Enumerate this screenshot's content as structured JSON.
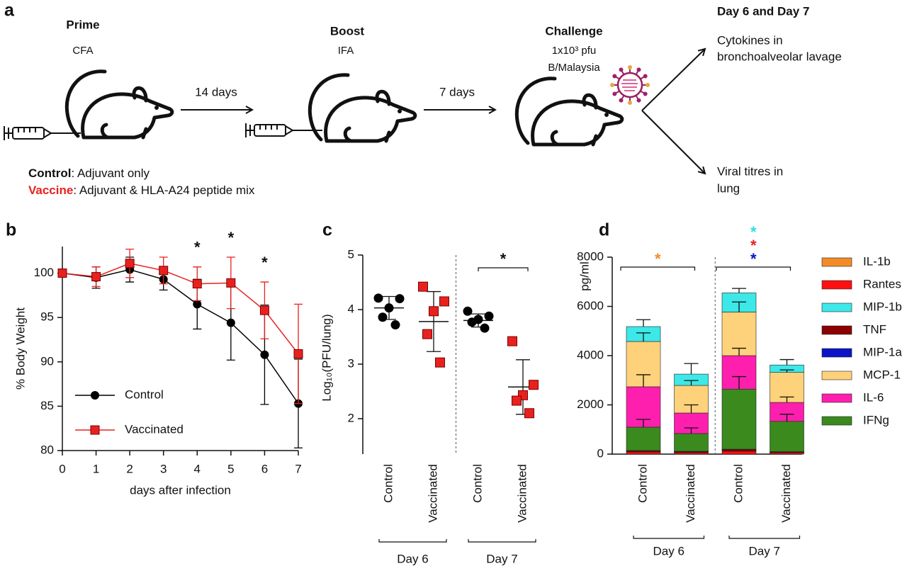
{
  "schematic": {
    "panel": "a",
    "steps": [
      {
        "title": "Prime",
        "adjuvant": "CFA"
      },
      {
        "title": "Boost",
        "adjuvant": "IFA"
      },
      {
        "title": "Challenge",
        "dose": "1x10³ pfu",
        "strain": "B/Malaysia"
      }
    ],
    "intervals": [
      "14 days",
      "7 days"
    ],
    "readout": {
      "title": "Day 6 and Day 7",
      "outcomes": [
        [
          "Cytokines in",
          "bronchoalveolar lavage"
        ],
        [
          "Viral titres in",
          "lung"
        ]
      ]
    },
    "groups": [
      {
        "name": "Control",
        "description": ": Adjuvant only",
        "color": "#111111"
      },
      {
        "name": "Vaccine",
        "description": ": Adjuvant & HLA-A24 peptide mix",
        "color": "#e8211f"
      }
    ]
  },
  "chart_data": [
    {
      "panel": "b",
      "type": "line",
      "xlabel": "days after infection",
      "ylabel": "% Body Weight",
      "x": [
        0,
        1,
        2,
        3,
        4,
        5,
        6,
        7
      ],
      "xlim": [
        0,
        7
      ],
      "xticks": [
        0,
        1,
        2,
        3,
        4,
        5,
        6,
        7
      ],
      "ylim": [
        80,
        103
      ],
      "yticks": [
        80,
        85,
        90,
        95,
        100
      ],
      "legend": "lower left",
      "series": [
        {
          "name": "Control",
          "color": "#000000",
          "marker": "circle",
          "values": [
            100,
            99.5,
            100.4,
            99.3,
            96.5,
            94.4,
            90.8,
            85.3
          ],
          "errors": [
            0,
            1.2,
            1.4,
            1.2,
            2.8,
            4.2,
            5.6,
            5
          ]
        },
        {
          "name": "Vaccinated",
          "color": "#e8211f",
          "marker": "square",
          "values": [
            100,
            99.6,
            101.1,
            100.3,
            98.8,
            98.9,
            95.8,
            90.9
          ],
          "errors": [
            0,
            1.1,
            1.6,
            1.5,
            1.9,
            2.9,
            3.2,
            5.6
          ]
        }
      ],
      "annotations": [
        {
          "text": "*",
          "x": 4
        },
        {
          "text": "*",
          "x": 5
        },
        {
          "text": "*",
          "x": 6
        }
      ]
    },
    {
      "panel": "c",
      "type": "dot",
      "ylabel": "Log₁₀(PFU/lung)",
      "categories": [
        "Control",
        "Vaccinated",
        "Control",
        "Vaccinated"
      ],
      "groups": [
        "Day 6",
        "Day 7"
      ],
      "colors": [
        "#000000",
        "#e8211f",
        "#000000",
        "#e8211f"
      ],
      "markers": [
        "circle",
        "square",
        "circle",
        "square"
      ],
      "values": [
        [
          4.21,
          4.2,
          4.03,
          3.86,
          3.72
        ],
        [
          4.42,
          4.15,
          3.97,
          3.55,
          3.03
        ],
        [
          3.97,
          3.88,
          3.82,
          3.77,
          3.66
        ],
        [
          3.42,
          2.62,
          2.43,
          2.33,
          2.1
        ]
      ],
      "means": [
        4.03,
        3.78,
        3.8,
        2.58
      ],
      "sd": [
        0.21,
        0.55,
        0.12,
        0.5
      ],
      "ylim": [
        1.35,
        5
      ],
      "yticks": [
        2,
        3,
        4,
        5
      ],
      "annotations": [
        {
          "text": "*",
          "group": "Day 7"
        }
      ]
    },
    {
      "panel": "d",
      "type": "stacked-bar",
      "ylabel": "pg/ml",
      "categories": [
        "Control",
        "Vaccinated",
        "Control",
        "Vaccinated"
      ],
      "groups": [
        "Day 6",
        "Day 7"
      ],
      "ylim": [
        0,
        8000
      ],
      "yticks": [
        0,
        2000,
        4000,
        6000,
        8000
      ],
      "legend": "right",
      "series": [
        {
          "name": "IL-1b",
          "color": "#f28c28",
          "values": [
            5,
            5,
            5,
            2
          ]
        },
        {
          "name": "Rantes",
          "color": "#ff1010",
          "values": [
            80,
            60,
            110,
            55
          ]
        },
        {
          "name": "MIP-1b",
          "color": "#3de8e8",
          "values": [
            605,
            460,
            780,
            300
          ],
          "errors": [
            280,
            430,
            180,
            220
          ]
        },
        {
          "name": "TNF",
          "color": "#8b0000",
          "values": [
            50,
            40,
            70,
            35
          ]
        },
        {
          "name": "MIP-1a",
          "color": "#0a14c8",
          "values": [
            10,
            10,
            15,
            8
          ]
        },
        {
          "name": "MCP-1",
          "color": "#fdd27a",
          "values": [
            1840,
            1120,
            1770,
            1220
          ],
          "errors": [
            350,
            200,
            410,
            100
          ]
        },
        {
          "name": "IL-6",
          "color": "#ff1fae",
          "values": [
            1640,
            835,
            1360,
            770
          ],
          "errors": [
            490,
            330,
            300,
            220
          ]
        },
        {
          "name": "IFNg",
          "color": "#3a8a1e",
          "values": [
            950,
            720,
            2440,
            1230
          ],
          "errors": [
            315,
            230,
            510,
            290
          ]
        }
      ],
      "annotations": [
        {
          "text": "*",
          "group": "Day 6",
          "color": "#f28c28"
        },
        {
          "text": "*",
          "group": "Day 7",
          "color": "#2fdede"
        },
        {
          "text": "*",
          "group": "Day 7",
          "color": "#e8211f"
        },
        {
          "text": "*",
          "group": "Day 7",
          "color": "#0a14c8"
        }
      ]
    }
  ]
}
